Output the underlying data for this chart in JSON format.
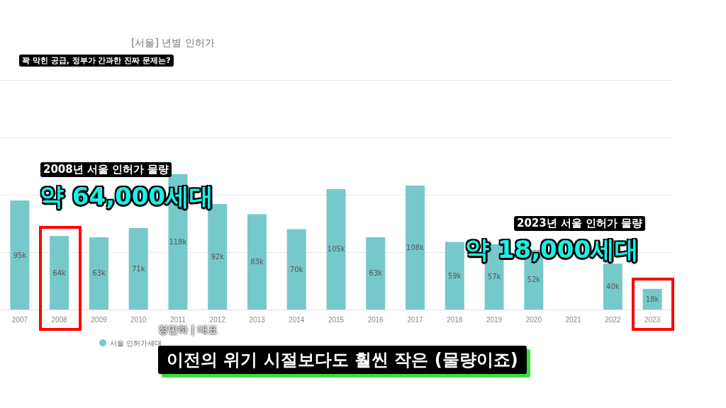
{
  "chart_data": {
    "type": "bar",
    "title": "[서울] 년별 인허가",
    "categories": [
      "2007",
      "2008",
      "2009",
      "2010",
      "2011",
      "2012",
      "2013",
      "2014",
      "2015",
      "2016",
      "2017",
      "2018",
      "2019",
      "2020",
      "2021",
      "2022",
      "2023"
    ],
    "series": [
      {
        "name": "서울 인허가세대",
        "color": "#76c9cb",
        "values": [
          95,
          64,
          63,
          71,
          118,
          92,
          83,
          70,
          105,
          63,
          108,
          59,
          57,
          52,
          null,
          40,
          18
        ],
        "value_labels": [
          "95k",
          "64k",
          "63k",
          "71k",
          "118k",
          "92k",
          "83k",
          "70k",
          "105k",
          "63k",
          "108k",
          "59k",
          "57k",
          "52k",
          null,
          "40k",
          "18k"
        ]
      }
    ],
    "ylim": [
      0,
      200
    ],
    "yticks": [
      {
        "value": 0,
        "label": null
      },
      {
        "value": 50,
        "label": null
      },
      {
        "value": 100,
        "label": null
      },
      {
        "value": 150,
        "label": null
      },
      {
        "value": 200,
        "label": null
      }
    ],
    "tick_labels": "x",
    "grid": "y",
    "legend": "bottom left",
    "annotations": [
      "꽉 막힌 공급, 정부가 간과한 진짜 문제는?",
      "2008년 서울 인허가 물량",
      "약 64,000세대",
      "2023년 서울 인허가 물량",
      "약 18,000세대",
      "정민하 | 대표",
      "이전의 위기 시절보다도 훨씬 작은 (물량이죠)"
    ]
  }
}
